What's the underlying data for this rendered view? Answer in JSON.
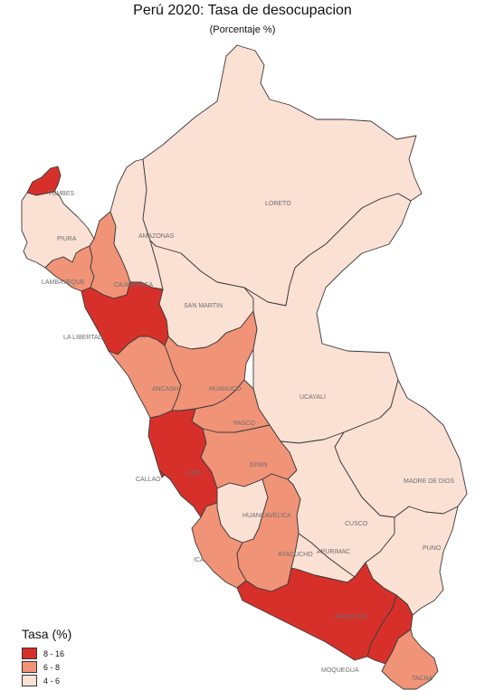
{
  "title": "Perú 2020: Tasa de desocupacion",
  "subtitle": "(Porcentaje %)",
  "colors": {
    "high": "#d7302a",
    "mid": "#f09377",
    "low": "#fbe0d4",
    "border": "#3a3a3a"
  },
  "legend": {
    "title": "Tasa (%)",
    "items": [
      {
        "label": "8 - 16",
        "class": "high"
      },
      {
        "label": "6 - 8",
        "class": "mid"
      },
      {
        "label": "4 - 6",
        "class": "low"
      }
    ]
  },
  "regions": [
    {
      "name": "TUMBES",
      "class": "high"
    },
    {
      "name": "PIURA",
      "class": "low"
    },
    {
      "name": "LAMBAYEQUE",
      "class": "mid"
    },
    {
      "name": "CAJAMARCA",
      "class": "mid"
    },
    {
      "name": "AMAZONAS",
      "class": "low"
    },
    {
      "name": "LORETO",
      "class": "low"
    },
    {
      "name": "SAN MARTIN",
      "class": "low"
    },
    {
      "name": "LA LIBERTAD",
      "class": "high"
    },
    {
      "name": "ANCASH",
      "class": "mid"
    },
    {
      "name": "HUANUCO",
      "class": "mid"
    },
    {
      "name": "UCAYALI",
      "class": "low"
    },
    {
      "name": "PASCO",
      "class": "mid"
    },
    {
      "name": "CALLAO",
      "class": "high"
    },
    {
      "name": "LIMA",
      "class": "high"
    },
    {
      "name": "JUNIN",
      "class": "mid"
    },
    {
      "name": "MADRE DE DIOS",
      "class": "low"
    },
    {
      "name": "HUANCAVELICA",
      "class": "low"
    },
    {
      "name": "CUSCO",
      "class": "low"
    },
    {
      "name": "ICA",
      "class": "mid"
    },
    {
      "name": "AYACUCHO",
      "class": "mid"
    },
    {
      "name": "APURIMAC",
      "class": "low"
    },
    {
      "name": "PUNO",
      "class": "low"
    },
    {
      "name": "AREQUIPA",
      "class": "high"
    },
    {
      "name": "MOQUEGUA",
      "class": "high"
    },
    {
      "name": "TACNA",
      "class": "mid"
    }
  ]
}
